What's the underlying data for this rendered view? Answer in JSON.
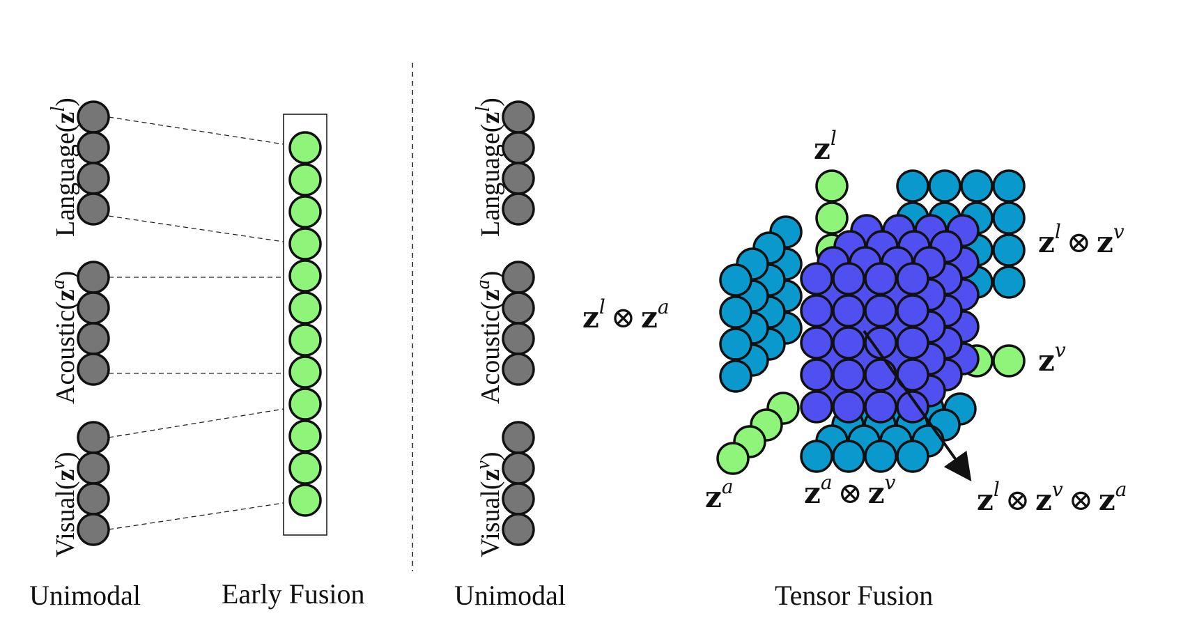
{
  "captions": {
    "unimodal_left": "Unimodal",
    "early_fusion": "Early Fusion",
    "unimodal_right": "Unimodal",
    "tensor_fusion": "Tensor Fusion"
  },
  "modalities": {
    "language": {
      "word": "Language",
      "vec": "z",
      "sup": "l"
    },
    "acoustic": {
      "word": "Acoustic",
      "vec": "z",
      "sup": "a"
    },
    "visual": {
      "word": "Visual",
      "vec": "z",
      "sup": "v"
    }
  },
  "tensor_labels": {
    "zl": {
      "base": "z",
      "sup": "l"
    },
    "zv": {
      "base": "z",
      "sup": "v"
    },
    "za": {
      "base": "z",
      "sup": "a"
    },
    "lxv": {
      "a": "z",
      "asup": "l",
      "op": "⊗",
      "b": "z",
      "bsup": "v"
    },
    "lxa": {
      "a": "z",
      "asup": "l",
      "op": "⊗",
      "b": "z",
      "bsup": "a"
    },
    "axv": {
      "a": "z",
      "asup": "a",
      "op": "⊗",
      "b": "z",
      "bsup": "v"
    },
    "lxvxa": {
      "a": "z",
      "asup": "l",
      "op": "⊗",
      "b": "z",
      "bsup": "v",
      "op2": "⊗",
      "c": "z",
      "csup": "a"
    }
  },
  "colors": {
    "unimodal": "#767676",
    "fusion_green": "#8ef57a",
    "pairwise_cyan": "#0a99cc",
    "trimodal_blue": "#5050f0",
    "stroke": "#111111"
  },
  "counts": {
    "unimodal_per_modality": 4,
    "early_fusion_units": 12
  }
}
